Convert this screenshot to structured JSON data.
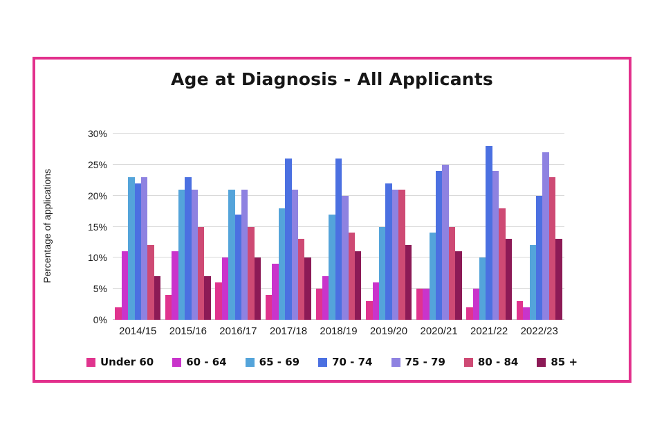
{
  "frame": {
    "border_color": "#e2308c"
  },
  "chart_data": {
    "type": "bar",
    "title": "Age at Diagnosis - All Applicants",
    "xlabel": "",
    "ylabel": "Percentage of applications",
    "categories": [
      "2014/15",
      "2015/16",
      "2016/17",
      "2017/18",
      "2018/19",
      "2019/20",
      "2020/21",
      "2021/22",
      "2022/23"
    ],
    "series": [
      {
        "name": "Under 60",
        "color": "#e0348e",
        "values": [
          2,
          4,
          6,
          4,
          5,
          3,
          5,
          2,
          3
        ]
      },
      {
        "name": "60 - 64",
        "color": "#c934cb",
        "values": [
          11,
          11,
          10,
          9,
          7,
          6,
          5,
          5,
          2
        ]
      },
      {
        "name": "65 - 69",
        "color": "#54a4da",
        "values": [
          23,
          21,
          21,
          18,
          17,
          15,
          14,
          10,
          12
        ]
      },
      {
        "name": "70 - 74",
        "color": "#4b70e1",
        "values": [
          22,
          23,
          17,
          26,
          26,
          22,
          24,
          28,
          20
        ]
      },
      {
        "name": "75 - 79",
        "color": "#8e82e1",
        "values": [
          23,
          21,
          21,
          21,
          20,
          21,
          25,
          24,
          27
        ]
      },
      {
        "name": "80 - 84",
        "color": "#ce4a74",
        "values": [
          12,
          15,
          15,
          13,
          14,
          21,
          15,
          18,
          23
        ]
      },
      {
        "name": "85 +",
        "color": "#8c1a56",
        "values": [
          7,
          7,
          10,
          10,
          11,
          12,
          11,
          13,
          13
        ]
      }
    ],
    "ylim": [
      0,
      30
    ],
    "ytick_step": 5,
    "ytick_labels": [
      "0%",
      "5%",
      "10%",
      "15%",
      "20%",
      "25%",
      "30%"
    ],
    "grid": true,
    "legend_position": "bottom"
  }
}
